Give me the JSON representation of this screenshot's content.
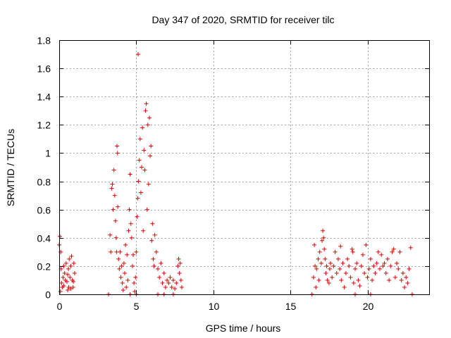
{
  "chart_data": {
    "type": "scatter",
    "title": "Day 347 of 2020, SRMTID for receiver tilc",
    "xlabel": "GPS time / hours",
    "ylabel": "SRMTID / TECUs",
    "xlim": [
      0,
      24
    ],
    "ylim": [
      0,
      1.8
    ],
    "xticks": [
      0,
      5,
      10,
      15,
      20
    ],
    "xtick_labels": [
      "0",
      "5",
      "10",
      "15",
      "20"
    ],
    "yticks": [
      0,
      0.2,
      0.4,
      0.6,
      0.8,
      1,
      1.2,
      1.4,
      1.6,
      1.8
    ],
    "ytick_labels": [
      "0",
      "0.2",
      "0.4",
      "0.6",
      "0.8",
      "1",
      "1.2",
      "1.4",
      "1.6",
      "1.8"
    ],
    "grid": true,
    "marker": "+",
    "color": "#e00000",
    "series": [
      {
        "name": "SRMTID",
        "points": [
          [
            0.0,
            0.35
          ],
          [
            0.05,
            0.41
          ],
          [
            0.1,
            0.3
          ],
          [
            0.12,
            0.18
          ],
          [
            0.15,
            0.08
          ],
          [
            0.2,
            0.05
          ],
          [
            0.25,
            0.12
          ],
          [
            0.3,
            0.2
          ],
          [
            0.35,
            0.15
          ],
          [
            0.4,
            0.1
          ],
          [
            0.45,
            0.22
          ],
          [
            0.5,
            0.09
          ],
          [
            0.55,
            0.14
          ],
          [
            0.6,
            0.18
          ],
          [
            0.62,
            0.05
          ],
          [
            0.65,
            0.25
          ],
          [
            0.7,
            0.12
          ],
          [
            0.75,
            0.2
          ],
          [
            0.8,
            0.27
          ],
          [
            0.85,
            0.1
          ],
          [
            0.9,
            0.05
          ],
          [
            0.95,
            0.22
          ],
          [
            1.0,
            0.15
          ],
          [
            0.08,
            0.02
          ],
          [
            0.3,
            0.06
          ],
          [
            0.55,
            0.03
          ],
          [
            0.75,
            0.04
          ],
          [
            0.92,
            0.09
          ],
          [
            3.3,
            0.42
          ],
          [
            3.35,
            0.3
          ],
          [
            3.4,
            0.75
          ],
          [
            3.45,
            0.78
          ],
          [
            3.5,
            0.6
          ],
          [
            3.55,
            0.88
          ],
          [
            3.6,
            0.7
          ],
          [
            3.65,
            0.52
          ],
          [
            3.7,
            0.4
          ],
          [
            3.72,
            0.3
          ],
          [
            3.75,
            1.05
          ],
          [
            3.78,
            1.0
          ],
          [
            3.8,
            0.62
          ],
          [
            3.85,
            0.25
          ],
          [
            3.9,
            0.18
          ],
          [
            3.95,
            0.3
          ],
          [
            4.0,
            0.12
          ],
          [
            4.05,
            0.2
          ],
          [
            4.1,
            0.08
          ],
          [
            4.15,
            0.03
          ],
          [
            4.2,
            0.22
          ],
          [
            4.25,
            0.15
          ],
          [
            4.3,
            0.35
          ],
          [
            4.35,
            0.05
          ],
          [
            4.4,
            0.28
          ],
          [
            4.45,
            0.1
          ],
          [
            4.5,
            0.45
          ],
          [
            4.55,
            0.6
          ],
          [
            4.6,
            0.85
          ],
          [
            4.65,
            0.5
          ],
          [
            4.7,
            0.4
          ],
          [
            4.75,
            0.2
          ],
          [
            4.8,
            0.28
          ],
          [
            4.85,
            0.08
          ],
          [
            4.9,
            0.02
          ],
          [
            4.95,
            0.12
          ],
          [
            5.0,
            0.3
          ],
          [
            5.05,
            0.55
          ],
          [
            5.1,
            0.68
          ],
          [
            5.12,
            1.7
          ],
          [
            5.15,
            0.8
          ],
          [
            5.2,
            0.95
          ],
          [
            5.25,
            1.1
          ],
          [
            5.3,
            0.72
          ],
          [
            5.35,
            0.9
          ],
          [
            5.4,
            1.18
          ],
          [
            5.45,
            0.45
          ],
          [
            5.5,
            1.02
          ],
          [
            5.55,
            0.88
          ],
          [
            5.6,
            1.3
          ],
          [
            5.65,
            1.35
          ],
          [
            5.7,
            0.6
          ],
          [
            5.75,
            1.2
          ],
          [
            5.8,
            0.78
          ],
          [
            5.85,
            1.25
          ],
          [
            5.9,
            0.98
          ],
          [
            5.95,
            1.05
          ],
          [
            6.0,
            0.38
          ],
          [
            6.05,
            0.5
          ],
          [
            6.1,
            0.25
          ],
          [
            6.15,
            0.2
          ],
          [
            6.2,
            0.42
          ],
          [
            6.3,
            0.3
          ],
          [
            6.4,
            0.18
          ],
          [
            6.5,
            0.12
          ],
          [
            6.6,
            0.22
          ],
          [
            6.7,
            0.08
          ],
          [
            6.8,
            0.15
          ],
          [
            6.9,
            0.05
          ],
          [
            7.0,
            0.1
          ],
          [
            7.1,
            0.08
          ],
          [
            7.2,
            0.12
          ],
          [
            7.3,
            0.05
          ],
          [
            7.4,
            0.1
          ],
          [
            7.5,
            0.04
          ],
          [
            7.6,
            0.08
          ],
          [
            7.7,
            0.2
          ],
          [
            7.75,
            0.25
          ],
          [
            7.8,
            0.15
          ],
          [
            7.85,
            0.22
          ],
          [
            7.9,
            0.1
          ],
          [
            7.95,
            0.05
          ],
          [
            3.2,
            0.0
          ],
          [
            4.6,
            0.0
          ],
          [
            5.0,
            0.0
          ],
          [
            6.4,
            0.0
          ],
          [
            6.8,
            0.0
          ],
          [
            7.4,
            0.0
          ],
          [
            16.4,
            0.0
          ],
          [
            16.5,
            0.12
          ],
          [
            16.55,
            0.35
          ],
          [
            16.6,
            0.2
          ],
          [
            16.65,
            0.05
          ],
          [
            16.7,
            0.18
          ],
          [
            16.8,
            0.25
          ],
          [
            16.85,
            0.1
          ],
          [
            16.9,
            0.3
          ],
          [
            17.0,
            0.22
          ],
          [
            17.05,
            0.38
          ],
          [
            17.1,
            0.45
          ],
          [
            17.15,
            0.4
          ],
          [
            17.2,
            0.32
          ],
          [
            17.25,
            0.25
          ],
          [
            17.3,
            0.15
          ],
          [
            17.35,
            0.2
          ],
          [
            17.4,
            0.1
          ],
          [
            17.5,
            0.08
          ],
          [
            17.55,
            0.18
          ],
          [
            17.6,
            0.22
          ],
          [
            17.7,
            0.12
          ],
          [
            17.8,
            0.2
          ],
          [
            17.9,
            0.3
          ],
          [
            18.0,
            0.15
          ],
          [
            18.1,
            0.25
          ],
          [
            18.2,
            0.18
          ],
          [
            18.25,
            0.34
          ],
          [
            18.3,
            0.1
          ],
          [
            18.4,
            0.22
          ],
          [
            18.5,
            0.05
          ],
          [
            18.6,
            0.15
          ],
          [
            18.7,
            0.25
          ],
          [
            18.8,
            0.2
          ],
          [
            18.9,
            0.12
          ],
          [
            19.0,
            0.32
          ],
          [
            19.05,
            0.3
          ],
          [
            19.1,
            0.08
          ],
          [
            19.2,
            0.18
          ],
          [
            19.3,
            0.22
          ],
          [
            19.4,
            0.1
          ],
          [
            19.5,
            0.06
          ],
          [
            19.6,
            0.2
          ],
          [
            19.7,
            0.28
          ],
          [
            19.8,
            0.15
          ],
          [
            19.9,
            0.35
          ],
          [
            20.0,
            0.12
          ],
          [
            20.1,
            0.18
          ],
          [
            20.2,
            0.25
          ],
          [
            20.3,
            0.1
          ],
          [
            20.4,
            0.2
          ],
          [
            20.5,
            0.15
          ],
          [
            20.6,
            0.22
          ],
          [
            20.7,
            0.3
          ],
          [
            20.8,
            0.18
          ],
          [
            20.9,
            0.28
          ],
          [
            21.0,
            0.2
          ],
          [
            21.1,
            0.22
          ],
          [
            21.2,
            0.15
          ],
          [
            21.3,
            0.25
          ],
          [
            21.4,
            0.1
          ],
          [
            21.5,
            0.2
          ],
          [
            21.6,
            0.3
          ],
          [
            21.7,
            0.32
          ],
          [
            21.8,
            0.12
          ],
          [
            21.9,
            0.22
          ],
          [
            22.0,
            0.18
          ],
          [
            22.1,
            0.3
          ],
          [
            22.2,
            0.1
          ],
          [
            22.3,
            0.15
          ],
          [
            22.4,
            0.05
          ],
          [
            22.5,
            0.12
          ],
          [
            22.6,
            0.08
          ],
          [
            22.7,
            0.18
          ],
          [
            22.8,
            0.33
          ],
          [
            22.9,
            0.0
          ],
          [
            19.2,
            0.0
          ],
          [
            20.2,
            0.0
          ]
        ]
      }
    ]
  }
}
